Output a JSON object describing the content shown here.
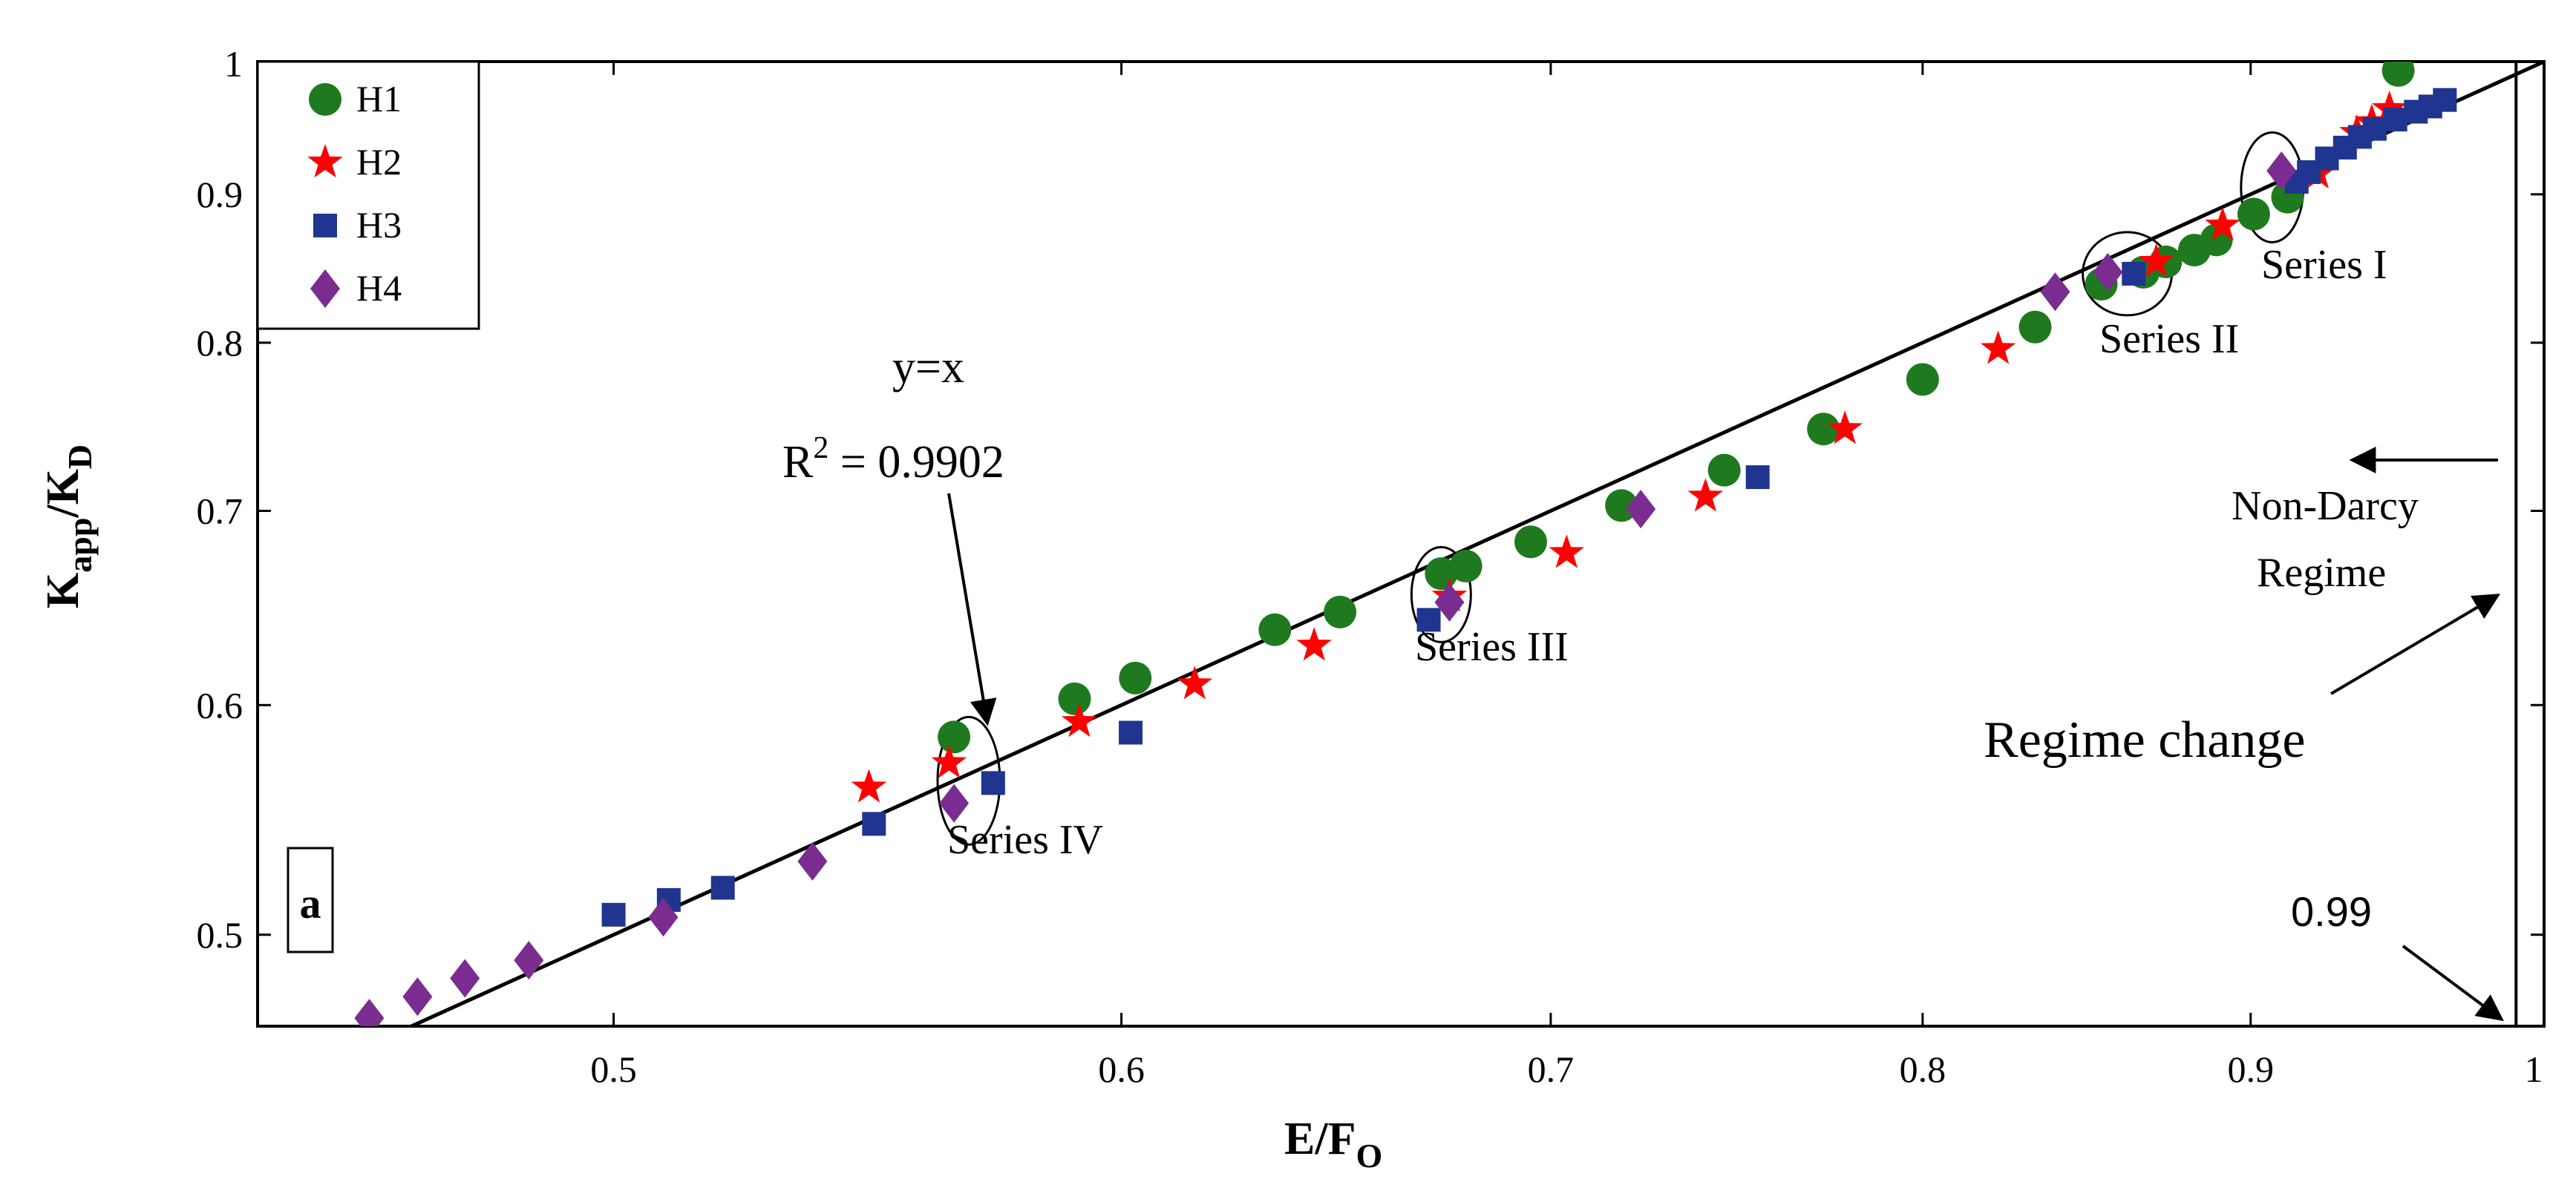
{
  "chart_data": {
    "type": "scatter",
    "scale": "log-log",
    "xlabel_main": "E/F",
    "xlabel_sub": "O",
    "ylabel_main": "K",
    "ylabel_sub1": "app",
    "ylabel_mid": "/K",
    "ylabel_sub2": "D",
    "xlim": [
      0.44,
      1.0
    ],
    "ylim": [
      0.465,
      1.0
    ],
    "x_ticks": [
      {
        "value": 0.5,
        "label": "0.5"
      },
      {
        "value": 0.6,
        "label": "0.6"
      },
      {
        "value": 0.7,
        "label": "0.7"
      },
      {
        "value": 0.8,
        "label": "0.8"
      },
      {
        "value": 0.9,
        "label": "0.9"
      },
      {
        "value": 1.0,
        "label": "1"
      }
    ],
    "y_ticks": [
      {
        "value": 0.5,
        "label": "0.5"
      },
      {
        "value": 0.6,
        "label": "0.6"
      },
      {
        "value": 0.7,
        "label": "0.7"
      },
      {
        "value": 0.8,
        "label": "0.8"
      },
      {
        "value": 0.9,
        "label": "0.9"
      },
      {
        "value": 1.0,
        "label": "1"
      }
    ],
    "series": [
      {
        "name": "H1",
        "marker": "circle",
        "color": "#1f7a1f",
        "points": [
          [
            0.565,
            0.585
          ],
          [
            0.59,
            0.603
          ],
          [
            0.603,
            0.613
          ],
          [
            0.634,
            0.637
          ],
          [
            0.649,
            0.646
          ],
          [
            0.673,
            0.666
          ],
          [
            0.679,
            0.67
          ],
          [
            0.695,
            0.683
          ],
          [
            0.718,
            0.703
          ],
          [
            0.745,
            0.723
          ],
          [
            0.772,
            0.747
          ],
          [
            0.8,
            0.777
          ],
          [
            0.833,
            0.81
          ],
          [
            0.853,
            0.838
          ],
          [
            0.866,
            0.846
          ],
          [
            0.873,
            0.853
          ],
          [
            0.882,
            0.861
          ],
          [
            0.889,
            0.868
          ],
          [
            0.901,
            0.886
          ],
          [
            0.912,
            0.898
          ],
          [
            0.949,
            0.993
          ]
        ]
      },
      {
        "name": "H2",
        "marker": "star",
        "color": "#ff0000",
        "points": [
          [
            0.548,
            0.562
          ],
          [
            0.564,
            0.573
          ],
          [
            0.591,
            0.592
          ],
          [
            0.616,
            0.61
          ],
          [
            0.643,
            0.629
          ],
          [
            0.675,
            0.654
          ],
          [
            0.704,
            0.677
          ],
          [
            0.74,
            0.708
          ],
          [
            0.778,
            0.747
          ],
          [
            0.822,
            0.796
          ],
          [
            0.87,
            0.853
          ],
          [
            0.891,
            0.878
          ],
          [
            0.922,
            0.915
          ],
          [
            0.935,
            0.945
          ],
          [
            0.94,
            0.953
          ],
          [
            0.946,
            0.963
          ]
        ]
      },
      {
        "name": "H3",
        "marker": "square",
        "color": "#1f3590",
        "points": [
          [
            0.5,
            0.508
          ],
          [
            0.51,
            0.514
          ],
          [
            0.52,
            0.519
          ],
          [
            0.549,
            0.546
          ],
          [
            0.573,
            0.564
          ],
          [
            0.602,
            0.587
          ],
          [
            0.67,
            0.642
          ],
          [
            0.754,
            0.719
          ],
          [
            0.863,
            0.845
          ],
          [
            0.915,
            0.909
          ],
          [
            0.919,
            0.916
          ],
          [
            0.925,
            0.926
          ],
          [
            0.931,
            0.934
          ],
          [
            0.936,
            0.942
          ],
          [
            0.941,
            0.948
          ],
          [
            0.948,
            0.955
          ],
          [
            0.955,
            0.961
          ],
          [
            0.96,
            0.965
          ],
          [
            0.965,
            0.97
          ]
        ]
      },
      {
        "name": "H4",
        "marker": "diamond",
        "color": "#7a2c90",
        "points": [
          [
            0.458,
            0.468
          ],
          [
            0.466,
            0.476
          ],
          [
            0.474,
            0.483
          ],
          [
            0.485,
            0.49
          ],
          [
            0.509,
            0.507
          ],
          [
            0.537,
            0.53
          ],
          [
            0.565,
            0.555
          ],
          [
            0.675,
            0.651
          ],
          [
            0.723,
            0.701
          ],
          [
            0.839,
            0.833
          ],
          [
            0.855,
            0.846
          ],
          [
            0.91,
            0.917
          ]
        ]
      }
    ],
    "reference_line": {
      "label": "y=x",
      "r2_main": "R",
      "r2_exp": "2",
      "r2_value": " = 0.9902",
      "from": 0.44,
      "to": 1.0
    },
    "vertical_line": {
      "x": 0.99,
      "label": "0.99"
    },
    "panel_label": "a",
    "annotations": {
      "series_i": "Series I",
      "series_ii": "Series II",
      "series_iii": "Series III",
      "series_iv": "Series IV",
      "non_darcy_1": "Non-Darcy",
      "non_darcy_2": "Regime",
      "regime_change": "Regime change"
    },
    "ellipses": [
      {
        "name": "series-i-ellipse",
        "x": 0.907,
        "y": 0.905
      },
      {
        "name": "series-ii-ellipse",
        "x": 0.861,
        "y": 0.845
      },
      {
        "name": "series-iii-ellipse",
        "x": 0.673,
        "y": 0.655
      },
      {
        "name": "series-iv-ellipse",
        "x": 0.568,
        "y": 0.565
      }
    ]
  }
}
